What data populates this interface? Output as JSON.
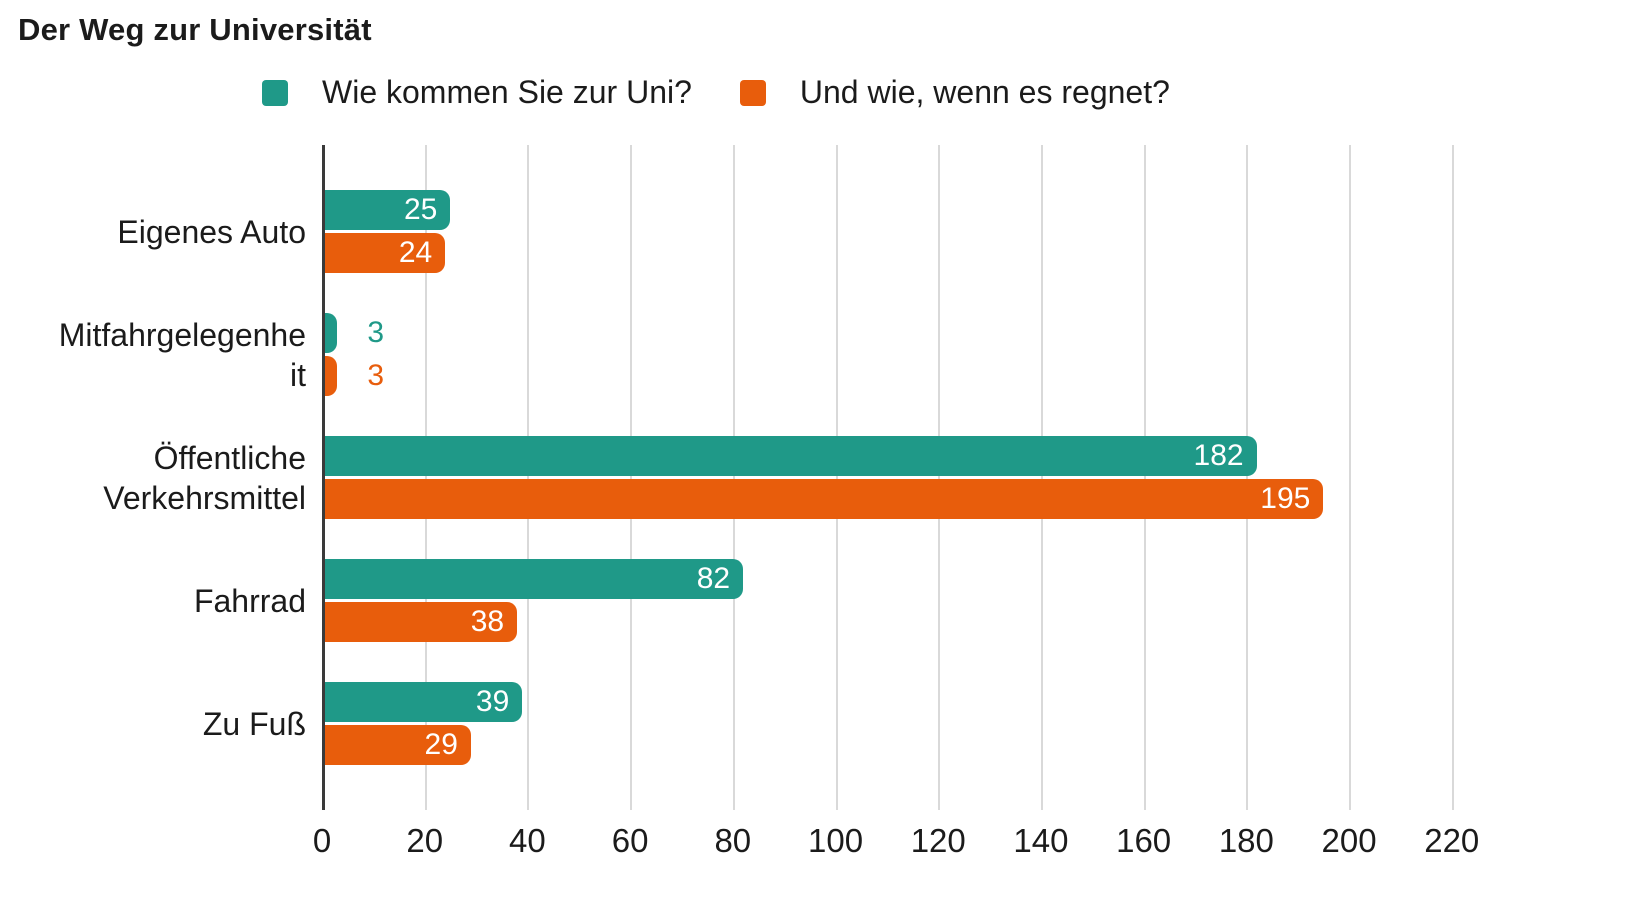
{
  "title": "Der Weg zur Universität",
  "colors": {
    "background": "#FFFFFF",
    "gridline": "#D9D9D9",
    "axis_line": "#3A3A3A",
    "text": "#1B1B1B",
    "value_label_inside": "#FFFFFF"
  },
  "chart_data": {
    "type": "bar",
    "orientation": "horizontal",
    "title": "Der Weg zur Universität",
    "categories": [
      "Eigenes Auto",
      "Mitfahrgelegenheit",
      "Öffentliche Verkehrsmittel",
      "Fahrrad",
      "Zu Fuß"
    ],
    "category_labels_wrapped": [
      "Eigenes Auto",
      "Mitfahrgelegenhe\nit",
      "Öffentliche\nVerkehrsmittel",
      "Fahrrad",
      "Zu Fuß"
    ],
    "series": [
      {
        "name": "Wie kommen Sie zur Uni?",
        "color": "#1F9988",
        "values": [
          25,
          3,
          182,
          82,
          39
        ]
      },
      {
        "name": "Und wie, wenn es regnet?",
        "color": "#E85D0C",
        "values": [
          24,
          3,
          195,
          38,
          29
        ]
      }
    ],
    "xticks": [
      0,
      20,
      40,
      60,
      80,
      100,
      120,
      140,
      160,
      180,
      200,
      220
    ],
    "xlim": [
      0,
      220
    ],
    "xmax_render": 244,
    "grid": true,
    "legend_position": "top",
    "value_labels": true
  }
}
